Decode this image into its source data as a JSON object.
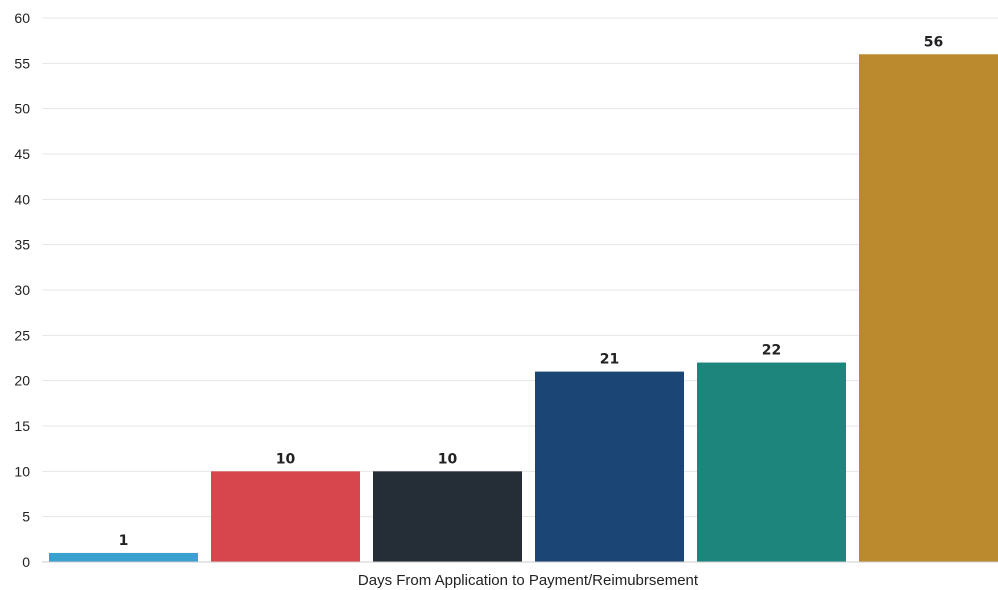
{
  "chart_data": {
    "type": "bar",
    "xlabel": "Days From Application to Payment/Reimubrsement",
    "ylabel": "",
    "ylim": [
      0,
      60
    ],
    "yticks": [
      0,
      5,
      10,
      15,
      20,
      25,
      30,
      35,
      40,
      45,
      50,
      55,
      60
    ],
    "grid": true,
    "values": [
      1,
      10,
      10,
      21,
      22,
      56
    ],
    "colors": [
      "#3aa0d0",
      "#d6464c",
      "#252d36",
      "#1b4574",
      "#1e857c",
      "#bc8a2e"
    ]
  }
}
